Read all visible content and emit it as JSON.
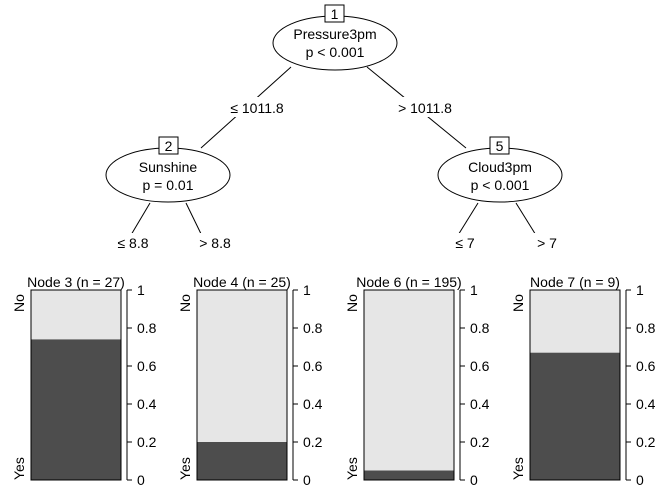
{
  "colors": {
    "yes": "#4d4d4d",
    "no": "#e6e6e6",
    "line": "#000000",
    "background": "#ffffff"
  },
  "inner_nodes": [
    {
      "id": "1",
      "variable": "Pressure3pm",
      "pvalue": "p < 0.001"
    },
    {
      "id": "2",
      "variable": "Sunshine",
      "pvalue": "p = 0.01"
    },
    {
      "id": "5",
      "variable": "Cloud3pm",
      "pvalue": "p < 0.001"
    }
  ],
  "edges": [
    {
      "label": "≤ 1011.8"
    },
    {
      "label": "> 1011.8"
    },
    {
      "label": "≤ 8.8"
    },
    {
      "label": "> 8.8"
    },
    {
      "label": "≤ 7"
    },
    {
      "label": "> 7"
    }
  ],
  "terminal_nodes": [
    {
      "title": "Node 3 (n = 27)",
      "yes_fraction": 0.74
    },
    {
      "title": "Node 4 (n = 25)",
      "yes_fraction": 0.2
    },
    {
      "title": "Node 6 (n = 195)",
      "yes_fraction": 0.05
    },
    {
      "title": "Node 7 (n = 9)",
      "yes_fraction": 0.67
    }
  ],
  "class_labels": {
    "top": "No",
    "bottom": "Yes"
  },
  "y_ticks": [
    "0",
    "0.2",
    "0.4",
    "0.6",
    "0.8",
    "1"
  ]
}
